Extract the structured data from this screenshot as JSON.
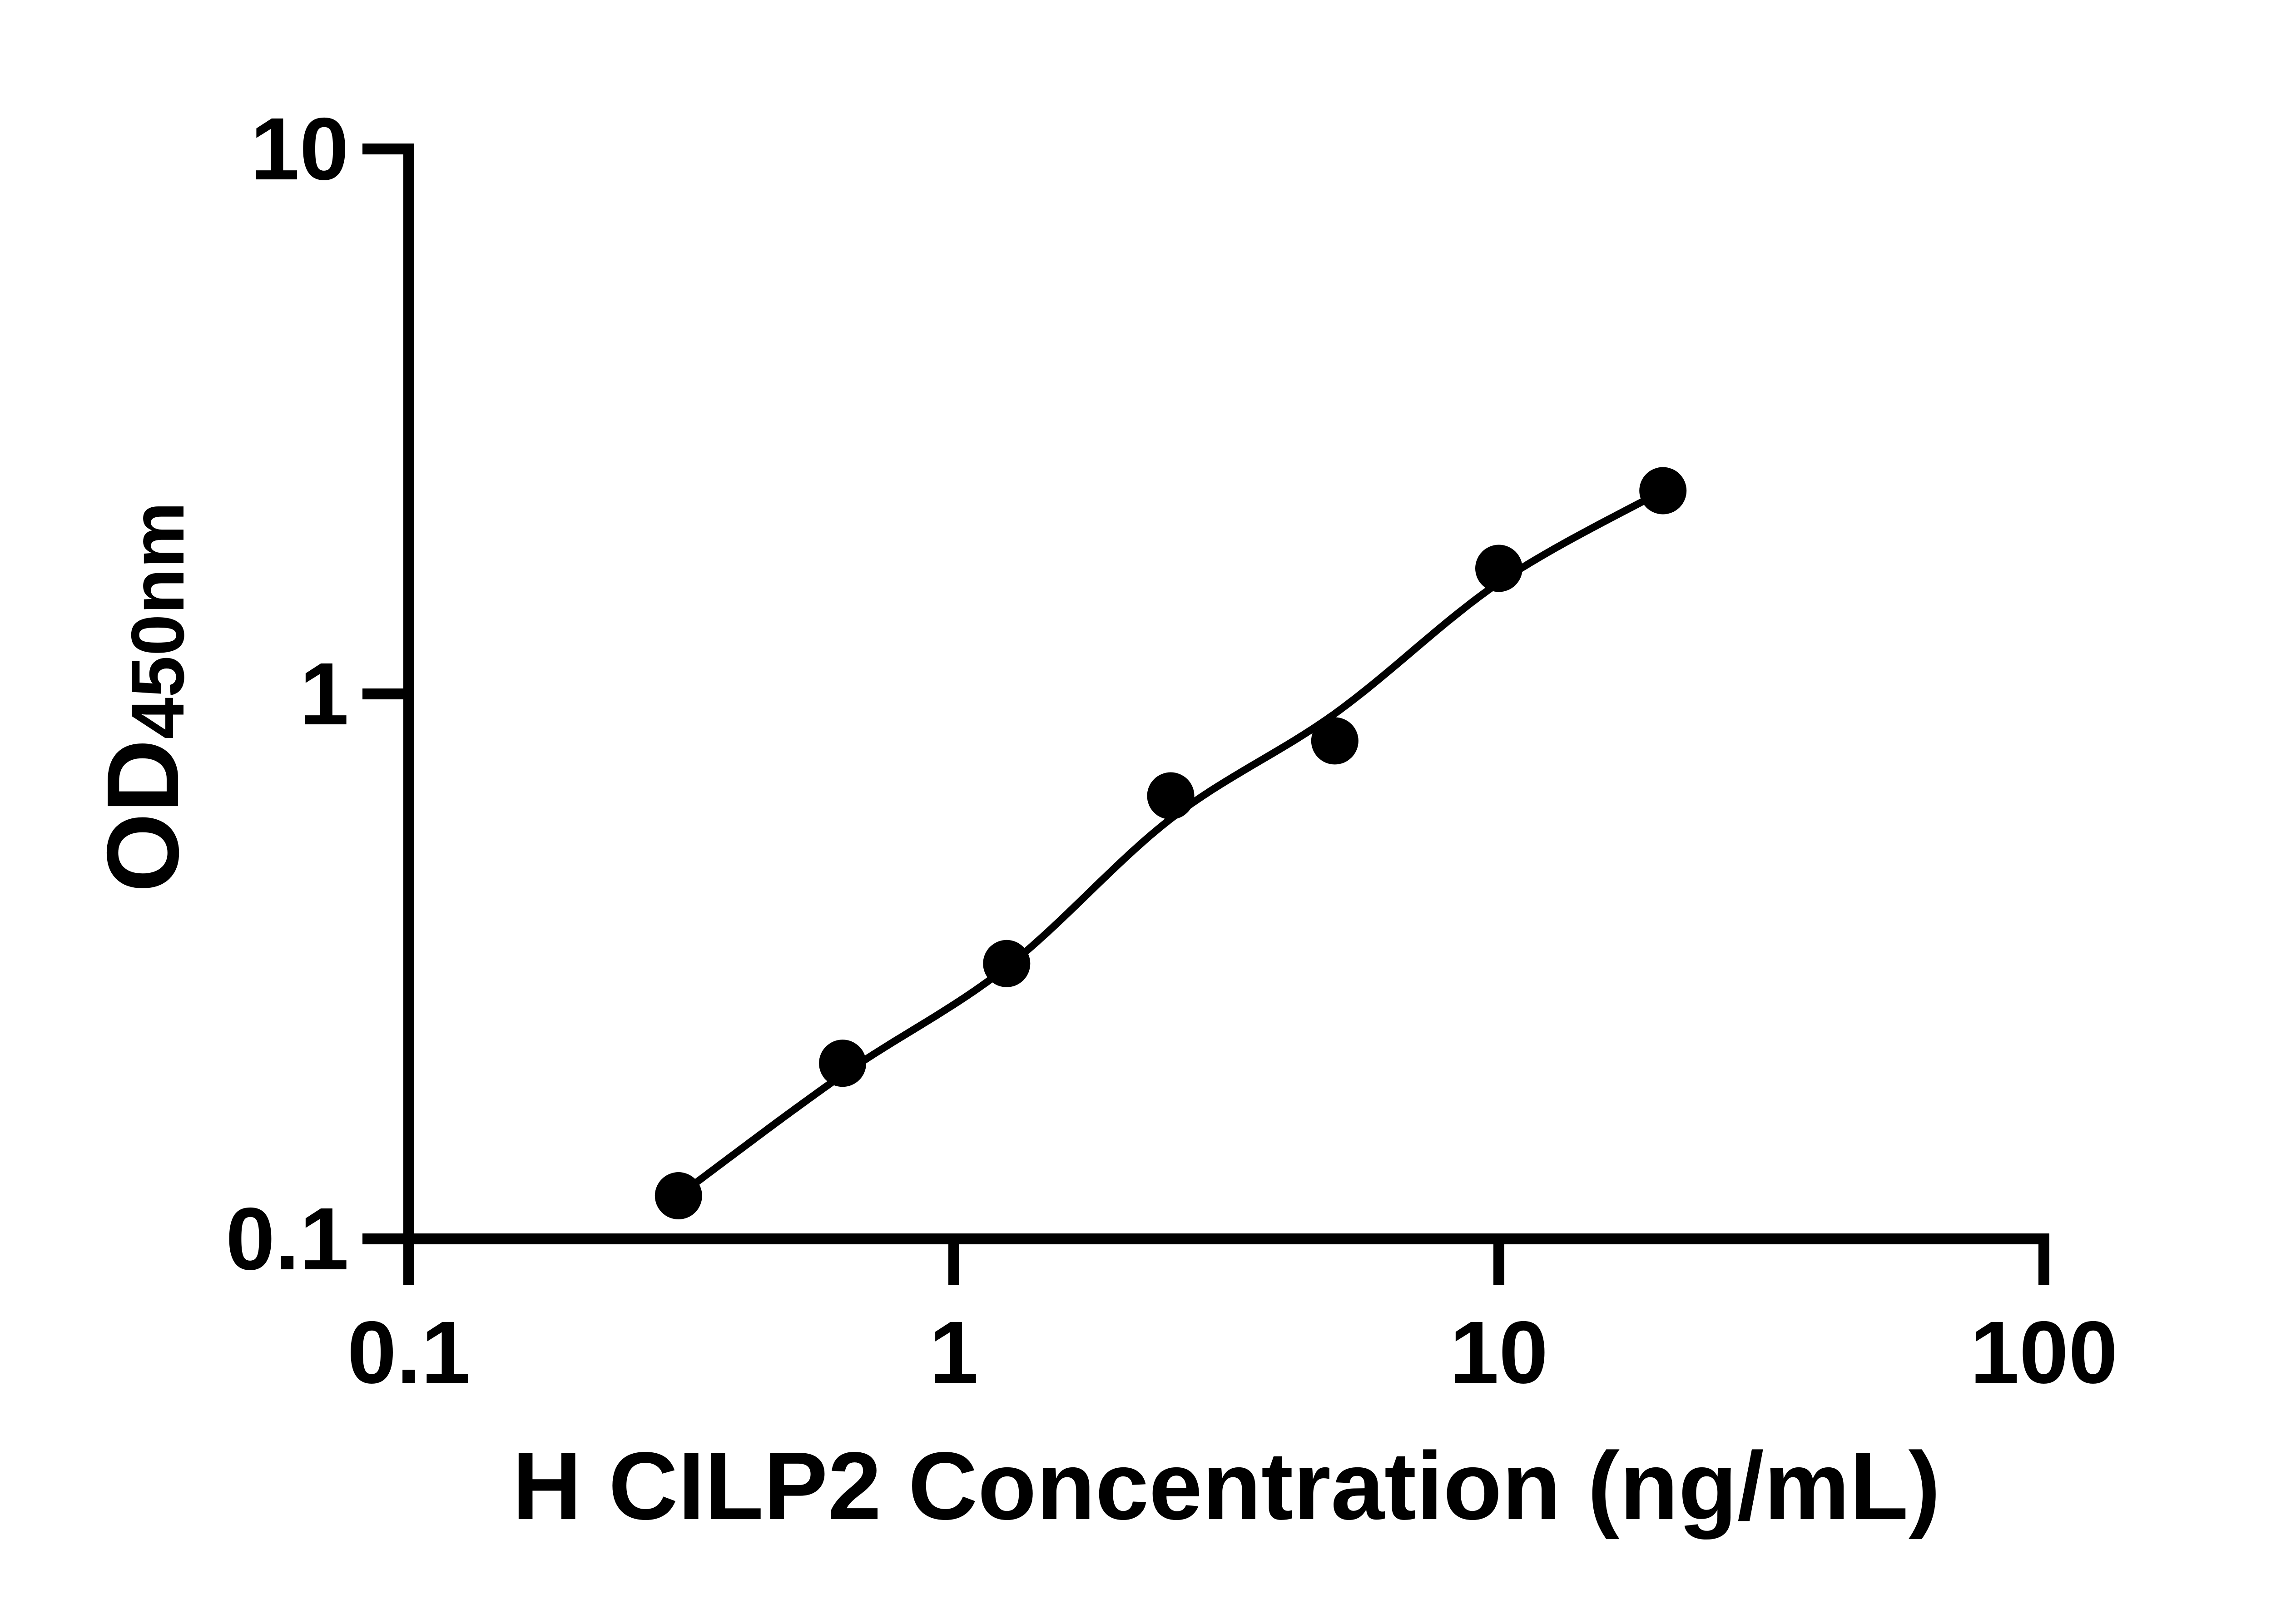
{
  "chart_data": {
    "type": "scatter",
    "title": "",
    "xlabel": "H CILP2 Concentration (ng/mL)",
    "ylabel_main": "OD",
    "ylabel_sub": "450nm",
    "x_scale": "log",
    "y_scale": "log",
    "xlim": [
      0.1,
      100
    ],
    "ylim": [
      0.1,
      10
    ],
    "x_ticks": [
      0.1,
      1,
      10,
      100
    ],
    "x_tick_labels": [
      "0.1",
      "1",
      "10",
      "100"
    ],
    "y_ticks": [
      10,
      1,
      0.1
    ],
    "y_tick_labels": [
      "10",
      "1",
      "0.1"
    ],
    "grid": false,
    "legend": false,
    "background_color": "#ffffff",
    "marker_color": "#000000",
    "line_color": "#000000",
    "axis_color": "#000000",
    "series": [
      {
        "name": "standard-points",
        "type": "scatter",
        "x": [
          0.3125,
          0.625,
          1.25,
          2.5,
          5,
          10,
          20
        ],
        "y": [
          0.12,
          0.21,
          0.32,
          0.65,
          0.82,
          1.7,
          2.36
        ]
      },
      {
        "name": "fit-curve",
        "type": "line",
        "x": [
          0.3125,
          0.625,
          1.25,
          2.5,
          5,
          10,
          20
        ],
        "y": [
          0.12,
          0.2,
          0.315,
          0.59,
          0.92,
          1.6,
          2.36
        ]
      }
    ]
  }
}
